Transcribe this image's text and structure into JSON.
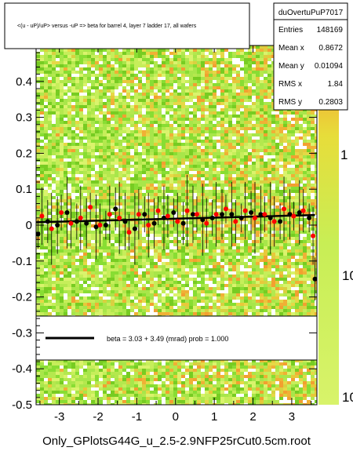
{
  "title": "<(u - uP)/uP> versus -uP => beta for barrel 4, layer 7 ladder 17, all wafers",
  "footer": "Only_GPlotsG44G_u_2.5-2.9NFP25rCut0.5cm.root",
  "stats": {
    "name": "duOvertuPuP7017",
    "rows": [
      {
        "label": "Entries",
        "value": "148169"
      },
      {
        "label": "Mean x",
        "value": "0.8672"
      },
      {
        "label": "Mean y",
        "value": "0.01094"
      },
      {
        "label": "RMS x",
        "value": "1.84"
      },
      {
        "label": "RMS y",
        "value": "0.2803"
      }
    ]
  },
  "fit_legend": "beta =     3.03 +  3.49 (mrad) prob = 1.000",
  "colors": {
    "marker_black": "#000000",
    "marker_red": "#ff0000",
    "fit_line": "#000000",
    "heat_low": "#77dd33",
    "heat_high": "#f0a030"
  },
  "chart_data": {
    "type": "heatmap",
    "xlim": [
      -3.6,
      3.65
    ],
    "ylim": [
      -0.5,
      0.5
    ],
    "x_ticks": [
      -3,
      -2,
      -1,
      0,
      1,
      2,
      3
    ],
    "y_ticks": [
      -0.5,
      -0.4,
      -0.3,
      -0.2,
      -0.1,
      0,
      0.1,
      0.2,
      0.3,
      0.4
    ],
    "x_tick_labels": [
      "-3",
      "-2",
      "-1",
      "0",
      "1",
      "2",
      "3"
    ],
    "y_tick_labels": [
      "-0.5",
      "-0.4",
      "-0.3",
      "-0.2",
      "-0.1",
      "0",
      "0.1",
      "0.2",
      "0.3",
      "0.4"
    ],
    "colorbar_scale": "log",
    "colorbar_labels": [
      "1",
      "10",
      "10"
    ],
    "fit_line": {
      "x": [
        -3.6,
        3.6
      ],
      "y": [
        0.008,
        0.028
      ]
    },
    "series": [
      {
        "marker": "black",
        "x": [
          -3.55,
          -3.3,
          -3.05,
          -2.8,
          -2.55,
          -2.3,
          -2.05,
          -1.8,
          -1.55,
          -1.3,
          -1.05,
          -0.8,
          -0.55,
          -0.3,
          -0.05,
          0.2,
          0.45,
          0.7,
          0.95,
          1.2,
          1.45,
          1.7,
          1.95,
          2.2,
          2.45,
          2.7,
          2.95,
          3.2,
          3.45,
          3.6
        ],
        "y": [
          -0.025,
          0.01,
          0.0,
          0.035,
          0.01,
          0.005,
          -0.005,
          0.0,
          0.045,
          0.01,
          -0.01,
          0.03,
          0.005,
          0.02,
          0.035,
          0.005,
          0.03,
          0.015,
          0.02,
          0.03,
          0.03,
          0.02,
          0.035,
          0.03,
          0.02,
          0.01,
          0.03,
          0.035,
          0.02,
          -0.15
        ]
      },
      {
        "marker": "red",
        "x": [
          -3.45,
          -3.2,
          -2.95,
          -2.7,
          -2.45,
          -2.2,
          -1.95,
          -1.7,
          -1.45,
          -1.2,
          -0.95,
          -0.7,
          -0.45,
          -0.2,
          0.05,
          0.3,
          0.55,
          0.8,
          1.05,
          1.3,
          1.55,
          1.8,
          2.05,
          2.3,
          2.55,
          2.8,
          3.05,
          3.3,
          3.55
        ],
        "y": [
          0.025,
          -0.01,
          0.035,
          0.005,
          0.02,
          0.05,
          0.0,
          0.03,
          0.02,
          -0.02,
          0.03,
          0.0,
          0.04,
          0.025,
          0.01,
          0.04,
          0.03,
          0.005,
          0.03,
          0.045,
          0.01,
          0.04,
          0.02,
          0.03,
          0.01,
          0.045,
          0.025,
          0.04,
          -0.03
        ]
      }
    ]
  }
}
